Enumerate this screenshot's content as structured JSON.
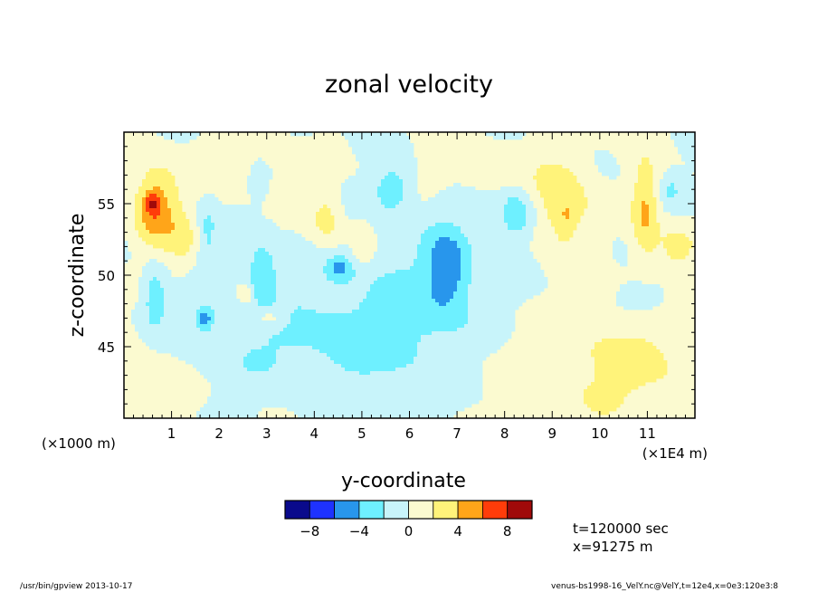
{
  "chart_data": {
    "type": "heatmap",
    "title": "zonal velocity",
    "xlabel": "y-coordinate",
    "ylabel": "z-coordinate",
    "x_unit_note": "(×1E4 m)",
    "y_unit_note": "(×1000 m)",
    "xlim": [
      0,
      12
    ],
    "ylim": [
      40,
      60
    ],
    "x_ticks": [
      {
        "value": 1,
        "label": "1"
      },
      {
        "value": 2,
        "label": "2"
      },
      {
        "value": 3,
        "label": "3"
      },
      {
        "value": 4,
        "label": "4"
      },
      {
        "value": 5,
        "label": "5"
      },
      {
        "value": 6,
        "label": "6"
      },
      {
        "value": 7,
        "label": "7"
      },
      {
        "value": 8,
        "label": "8"
      },
      {
        "value": 9,
        "label": "9"
      },
      {
        "value": 10,
        "label": "10"
      },
      {
        "value": 11,
        "label": "11"
      }
    ],
    "y_ticks": [
      {
        "value": 45,
        "label": "45"
      },
      {
        "value": 50,
        "label": "50"
      },
      {
        "value": 55,
        "label": "55"
      }
    ],
    "colorbar": {
      "levels": [
        -10,
        -8,
        -6,
        -4,
        -2,
        0,
        2,
        4,
        6,
        8,
        10
      ],
      "colors": [
        "#0a0a8c",
        "#1e32ff",
        "#2896ec",
        "#6ef0ff",
        "#c8f4fa",
        "#fbfad0",
        "#fff37a",
        "#ffa519",
        "#ff3c0a",
        "#a00a0a"
      ],
      "tick_labels": [
        {
          "value": -8,
          "label": "−8"
        },
        {
          "value": -4,
          "label": "−4"
        },
        {
          "value": 0,
          "label": "0"
        },
        {
          "value": 4,
          "label": "4"
        },
        {
          "value": 8,
          "label": "8"
        }
      ]
    },
    "features": [
      {
        "y": 0.65,
        "z": 54.6,
        "amp": 5.5,
        "sy": 0.32,
        "sz": 1.9
      },
      {
        "y": 0.6,
        "z": 55.0,
        "amp": 3.5,
        "sy": 0.12,
        "sz": 0.5
      },
      {
        "y": 0.65,
        "z": 48.5,
        "amp": -3.5,
        "sy": 0.18,
        "sz": 1.6
      },
      {
        "y": 1.25,
        "z": 52.5,
        "amp": 2.2,
        "sy": 0.25,
        "sz": 1.5
      },
      {
        "y": 1.75,
        "z": 53.0,
        "amp": -2.5,
        "sy": 0.15,
        "sz": 2.0
      },
      {
        "y": 1.7,
        "z": 47.0,
        "amp": -4.5,
        "sy": 0.13,
        "sz": 0.6
      },
      {
        "y": 2.55,
        "z": 48.7,
        "amp": 3.0,
        "sy": 0.12,
        "sz": 0.5
      },
      {
        "y": 2.9,
        "z": 50.2,
        "amp": -4.0,
        "sy": 0.22,
        "sz": 1.4
      },
      {
        "y": 2.8,
        "z": 56.5,
        "amp": -2.2,
        "sy": 0.12,
        "sz": 0.8
      },
      {
        "y": 3.05,
        "z": 47.0,
        "amp": 2.5,
        "sy": 0.25,
        "sz": 0.5
      },
      {
        "y": 4.25,
        "z": 53.8,
        "amp": 3.0,
        "sy": 0.25,
        "sz": 1.5
      },
      {
        "y": 4.55,
        "z": 50.5,
        "amp": -3.5,
        "sy": 0.2,
        "sz": 0.6
      },
      {
        "y": 5.65,
        "z": 56.0,
        "amp": -3.8,
        "sy": 0.25,
        "sz": 1.0
      },
      {
        "y": 5.0,
        "z": 52.0,
        "amp": 2.0,
        "sy": 0.2,
        "sz": 1.5
      },
      {
        "y": 6.8,
        "z": 50.5,
        "amp": -4.5,
        "sy": 0.3,
        "sz": 2.0
      },
      {
        "y": 8.25,
        "z": 54.3,
        "amp": -4.0,
        "sy": 0.25,
        "sz": 1.2
      },
      {
        "y": 9.2,
        "z": 55.0,
        "amp": 3.5,
        "sy": 0.45,
        "sz": 2.5
      },
      {
        "y": 9.3,
        "z": 54.0,
        "amp": 1.5,
        "sy": 0.1,
        "sz": 0.8
      },
      {
        "y": 10.95,
        "z": 54.5,
        "amp": 4.2,
        "sy": 0.2,
        "sz": 2.5
      },
      {
        "y": 11.6,
        "z": 52.0,
        "amp": 2.5,
        "sy": 0.3,
        "sz": 1.2
      },
      {
        "y": 10.95,
        "z": 48.5,
        "amp": -2.5,
        "sy": 0.3,
        "sz": 0.7
      },
      {
        "y": 11.5,
        "z": 56.0,
        "amp": -2.0,
        "sy": 0.15,
        "sz": 0.8
      },
      {
        "y": 6.0,
        "z": 48.0,
        "amp": -2.2,
        "sy": 1.5,
        "sz": 4.0
      },
      {
        "y": 3.5,
        "z": 45.0,
        "amp": -1.8,
        "sy": 2.5,
        "sz": 2.5
      },
      {
        "y": 9.0,
        "z": 44.0,
        "amp": 1.7,
        "sy": 1.5,
        "sz": 3.0
      },
      {
        "y": 0.5,
        "z": 43.0,
        "amp": 1.6,
        "sy": 0.8,
        "sz": 3.0
      },
      {
        "y": 11.0,
        "z": 43.0,
        "amp": 1.6,
        "sy": 1.2,
        "sz": 3.0
      },
      {
        "y": 2.0,
        "z": 57.5,
        "amp": 1.2,
        "sy": 1.0,
        "sz": 1.5
      },
      {
        "y": 7.5,
        "z": 57.5,
        "amp": 1.2,
        "sy": 0.8,
        "sz": 1.5
      }
    ]
  },
  "info": {
    "time": "t=120000  sec",
    "position": "x=91275  m"
  },
  "footer": {
    "left": "/usr/bin/gpview    2013-10-17",
    "right": "venus-bs1998-16_VelY.nc@VelY,t=12e4,x=0e3:120e3:8"
  }
}
